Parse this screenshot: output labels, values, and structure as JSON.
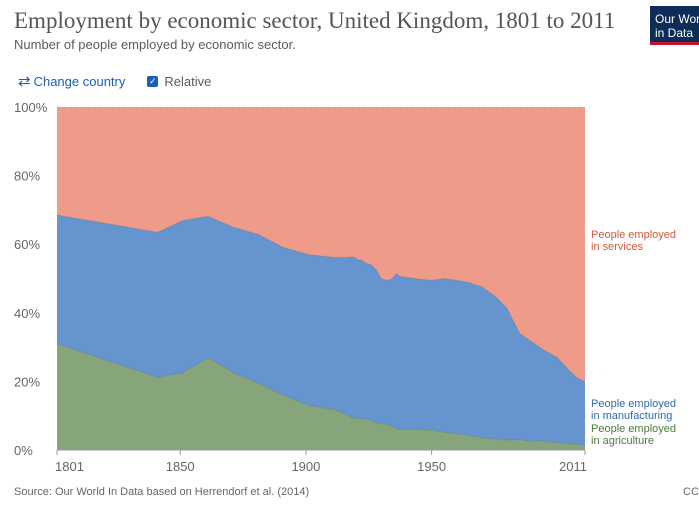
{
  "header": {
    "title": "Employment by economic sector, United Kingdom, 1801 to 2011",
    "subtitle": "Number of people employed by economic sector."
  },
  "logo": {
    "line1": "Our World",
    "line2": "in Data",
    "bg": "#0e2d56",
    "accent": "#c8102e"
  },
  "controls": {
    "change_country_label": "Change country",
    "change_country_icon": "swap-arrows-icon",
    "relative_label": "Relative",
    "relative_checked": true
  },
  "footer": {
    "source": "Source: Our World In Data based on Herrendorf et al. (2014)",
    "license": "CC"
  },
  "chart_data": {
    "type": "area",
    "stacked": true,
    "relative": true,
    "title": "",
    "xlabel": "",
    "ylabel": "",
    "xlim": [
      1801,
      2011
    ],
    "ylim": [
      0,
      100
    ],
    "x_ticks": [
      1801,
      1850,
      1900,
      1950,
      2011
    ],
    "y_ticks": [
      0,
      20,
      40,
      60,
      80,
      100
    ],
    "y_tick_labels": [
      "0%",
      "20%",
      "40%",
      "60%",
      "80%",
      "100%"
    ],
    "grid": {
      "horizontal": true,
      "vertical": false
    },
    "legend": "right, inline labels",
    "x": [
      1801,
      1841,
      1851,
      1861,
      1871,
      1881,
      1891,
      1901,
      1911,
      1916,
      1919,
      1921,
      1922,
      1924,
      1926,
      1928,
      1930,
      1932,
      1934,
      1936,
      1938,
      1946,
      1950,
      1955,
      1960,
      1965,
      1970,
      1975,
      1980,
      1985,
      1990,
      1995,
      2000,
      2005,
      2008,
      2011
    ],
    "series": [
      {
        "name": "People employed\nin agriculture",
        "color": "#87a57a",
        "values": [
          31,
          21.2,
          22.5,
          27,
          22.6,
          19.5,
          16,
          13,
          11.8,
          10.5,
          9,
          9.5,
          9,
          9,
          8.5,
          8,
          7.8,
          7.5,
          7,
          6.2,
          6,
          6,
          5.8,
          5.2,
          4.8,
          4.2,
          3.6,
          3.2,
          2.9,
          2.9,
          2.7,
          2.5,
          2.2,
          1.8,
          1.6,
          1.5
        ]
      },
      {
        "name": "People employed\nin manufacturing",
        "color": "#6694ce",
        "values": [
          37.5,
          42.3,
          44.4,
          41.2,
          42.4,
          43.4,
          43.1,
          44,
          44.4,
          45.7,
          47.3,
          45.8,
          46.5,
          45.5,
          45.5,
          44.5,
          42.2,
          42,
          42.8,
          45.2,
          44.5,
          43.8,
          43.7,
          44.8,
          44.7,
          44.6,
          44,
          41.8,
          38.4,
          31.1,
          28.8,
          26.5,
          24.8,
          21.2,
          19.4,
          18.5
        ]
      },
      {
        "name": "People employed\nin services",
        "color": "#ef9b8a",
        "values": [
          31.5,
          36.5,
          33.1,
          31.8,
          35,
          37.1,
          40.9,
          43,
          43.8,
          43.8,
          43.7,
          44.7,
          44.5,
          45.5,
          46,
          47.5,
          50,
          50.5,
          50.2,
          48.6,
          49.5,
          50.2,
          50.5,
          50,
          50.5,
          51.2,
          52.4,
          55,
          58.7,
          66,
          68.5,
          71,
          73,
          77,
          79,
          80
        ]
      }
    ]
  }
}
